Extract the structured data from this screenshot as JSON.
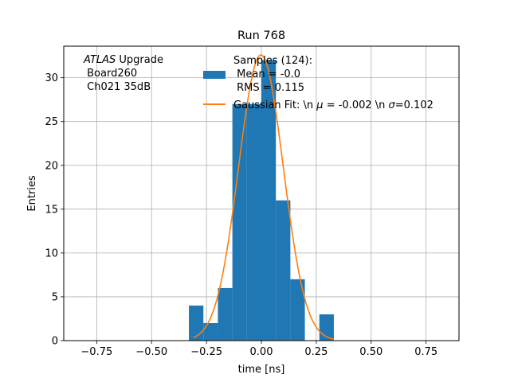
{
  "chart_data": {
    "type": "bar",
    "title": "Run 768",
    "xlabel": "time [ns]",
    "ylabel": "Entries",
    "xlim": [
      -0.9,
      0.9
    ],
    "ylim": [
      0,
      33.6
    ],
    "grid": true,
    "xticks": [
      -0.75,
      -0.5,
      -0.25,
      0.0,
      0.25,
      0.5,
      0.75
    ],
    "xtick_labels": [
      "−0.75",
      "−0.50",
      "−0.25",
      "0.00",
      "0.25",
      "0.50",
      "0.75"
    ],
    "yticks": [
      0,
      5,
      10,
      15,
      20,
      25,
      30
    ],
    "ytick_labels": [
      "0",
      "5",
      "10",
      "15",
      "20",
      "25",
      "30"
    ],
    "annotation": {
      "line1_italic": "ATLAS",
      "line1_rest": " Upgrade",
      "line2": " Board260",
      "line3": " Ch021 35dB"
    },
    "legend": {
      "location": "upper right",
      "histogram": {
        "line1": "Samples (124):",
        "line2": " Mean = -0.0",
        "line3": " RMS = 0.115",
        "color": "#1f77b4"
      },
      "fit": {
        "prefix": "Gaussian Fit: \\n ",
        "mu_symbol": "μ",
        "mid": " = -0.002 \\n ",
        "sigma_symbol": "σ",
        "suffix": "=0.102",
        "color": "#ff7f0e"
      }
    },
    "histogram": {
      "name": "Samples (124)",
      "color": "#1f77b4",
      "bins": [
        {
          "left": -0.33,
          "right": -0.264,
          "count": 4
        },
        {
          "left": -0.264,
          "right": -0.198,
          "count": 2
        },
        {
          "left": -0.198,
          "right": -0.132,
          "count": 6
        },
        {
          "left": -0.132,
          "right": -0.066,
          "count": 27
        },
        {
          "left": -0.066,
          "right": 0.0,
          "count": 27
        },
        {
          "left": 0.0,
          "right": 0.066,
          "count": 32
        },
        {
          "left": 0.066,
          "right": 0.132,
          "count": 16
        },
        {
          "left": 0.132,
          "right": 0.198,
          "count": 7
        },
        {
          "left": 0.198,
          "right": 0.264,
          "count": 0
        },
        {
          "left": 0.264,
          "right": 0.33,
          "count": 3
        }
      ]
    },
    "fit_curve": {
      "name": "Gaussian Fit",
      "color": "#ff7f0e",
      "mu": -0.002,
      "sigma": 0.102,
      "amplitude": 32.6,
      "x_range": [
        -0.31,
        0.33
      ]
    }
  }
}
